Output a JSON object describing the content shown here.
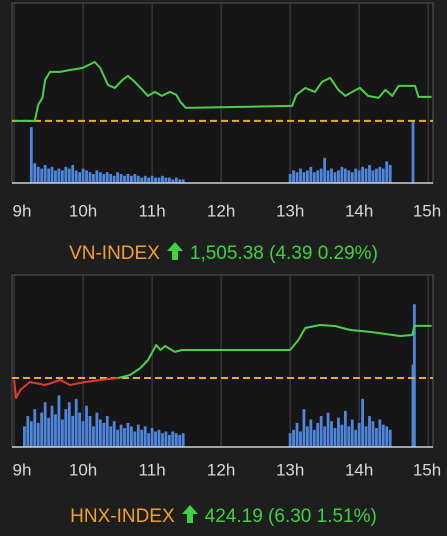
{
  "chart_data": [
    {
      "type": "line",
      "title": "VN-INDEX",
      "quote": "1,505.38 (4.39 0.29%)",
      "xlim": [
        8.97,
        15.07
      ],
      "ylim": [
        1489.6,
        1522.6
      ],
      "xticks": [
        {
          "value": 9,
          "label": "9h"
        },
        {
          "value": 10,
          "label": "10h"
        },
        {
          "value": 11,
          "label": "11h"
        },
        {
          "value": 12,
          "label": "12h"
        },
        {
          "value": 13,
          "label": "13h"
        },
        {
          "value": 14,
          "label": "14h"
        },
        {
          "value": 15,
          "label": "15h"
        }
      ],
      "grid": true,
      "reference": 1500.99,
      "colors": {
        "up": "#4ccf4c",
        "down": "#e2392c",
        "reference": "#e8b020",
        "volume": "#4f86dc"
      },
      "x": [
        9.0,
        9.3,
        9.35,
        9.41,
        9.45,
        9.52,
        9.67,
        9.81,
        9.99,
        10.17,
        10.25,
        10.36,
        10.46,
        10.57,
        10.65,
        10.75,
        10.86,
        10.94,
        11.04,
        11.14,
        11.26,
        11.35,
        11.41,
        11.49,
        13.03,
        13.09,
        13.22,
        13.36,
        13.46,
        13.58,
        13.7,
        13.8,
        13.9,
        14.01,
        14.13,
        14.28,
        14.38,
        14.48,
        14.57,
        14.81,
        14.86,
        15.05
      ],
      "values": [
        1500.99,
        1500.99,
        1503.92,
        1505.2,
        1508.49,
        1509.96,
        1509.96,
        1510.32,
        1510.69,
        1511.79,
        1510.69,
        1507.58,
        1507.03,
        1508.49,
        1509.23,
        1508.13,
        1506.66,
        1505.57,
        1506.3,
        1505.57,
        1506.3,
        1505.75,
        1504.47,
        1503.37,
        1503.74,
        1505.75,
        1507.03,
        1506.3,
        1508.13,
        1508.86,
        1506.66,
        1505.57,
        1506.3,
        1507.03,
        1505.57,
        1505.2,
        1506.66,
        1505.57,
        1507.4,
        1507.4,
        1505.38,
        1505.38
      ],
      "volume": {
        "ylim": [
          0,
          100
        ],
        "x": [
          9.25,
          9.3,
          9.35,
          9.4,
          9.45,
          9.5,
          9.55,
          9.6,
          9.65,
          9.7,
          9.75,
          9.8,
          9.85,
          9.9,
          9.95,
          10,
          10.05,
          10.1,
          10.15,
          10.2,
          10.25,
          10.3,
          10.35,
          10.4,
          10.45,
          10.5,
          10.55,
          10.6,
          10.65,
          10.7,
          10.75,
          10.8,
          10.85,
          10.9,
          10.95,
          11,
          11.05,
          11.1,
          11.15,
          11.2,
          11.25,
          11.3,
          11.35,
          11.4,
          11.45,
          13,
          13.05,
          13.1,
          13.15,
          13.2,
          13.25,
          13.3,
          13.35,
          13.4,
          13.45,
          13.5,
          13.55,
          13.6,
          13.65,
          13.7,
          13.75,
          13.8,
          13.85,
          13.9,
          13.95,
          14,
          14.05,
          14.1,
          14.15,
          14.2,
          14.25,
          14.3,
          14.35,
          14.4,
          14.45,
          14.78
        ],
        "values": [
          31,
          11,
          9,
          8,
          10,
          8,
          9,
          7,
          8,
          7,
          9,
          8,
          10,
          7,
          6,
          8,
          7,
          6,
          5,
          7,
          6,
          5,
          6,
          5,
          4,
          6,
          5,
          4,
          5,
          4,
          5,
          4,
          3,
          4,
          3,
          4,
          3,
          3,
          4,
          3,
          3,
          2,
          3,
          2,
          2,
          5,
          7,
          6,
          8,
          6,
          7,
          9,
          6,
          7,
          8,
          14,
          7,
          8,
          6,
          7,
          9,
          8,
          7,
          6,
          8,
          7,
          9,
          8,
          10,
          7,
          8,
          9,
          8,
          12,
          10,
          35
        ]
      }
    },
    {
      "type": "line",
      "title": "HNX-INDEX",
      "quote": "424.19 (6.30 1.51%)",
      "xlim": [
        8.97,
        15.07
      ],
      "ylim": [
        409.54,
        430.35
      ],
      "xticks": [
        {
          "value": 9,
          "label": "9h"
        },
        {
          "value": 10,
          "label": "10h"
        },
        {
          "value": 11,
          "label": "11h"
        },
        {
          "value": 12,
          "label": "12h"
        },
        {
          "value": 13,
          "label": "13h"
        },
        {
          "value": 14,
          "label": "14h"
        },
        {
          "value": 15,
          "label": "15h"
        }
      ],
      "grid": true,
      "reference": 417.89,
      "colors": {
        "up": "#4ccf4c",
        "down": "#e2392c",
        "reference": "#e8b020",
        "volume": "#4f86dc"
      },
      "x": [
        9.0,
        9.03,
        9.09,
        9.23,
        9.45,
        9.67,
        9.81,
        10.03,
        10.25,
        10.51,
        10.68,
        10.83,
        10.94,
        11.06,
        11.12,
        11.19,
        11.33,
        11.43,
        13.0,
        13.12,
        13.22,
        13.43,
        13.65,
        13.87,
        14.16,
        14.38,
        14.59,
        14.77,
        14.8,
        15.05
      ],
      "values": [
        417.65,
        415.47,
        416.44,
        417.41,
        417.04,
        417.65,
        417.04,
        417.41,
        417.65,
        417.89,
        418.25,
        419.1,
        420.07,
        421.88,
        421.28,
        421.76,
        421.04,
        421.28,
        421.28,
        422.49,
        423.94,
        424.3,
        424.18,
        423.7,
        423.46,
        423.21,
        422.97,
        423.09,
        424.19,
        424.19
      ],
      "volume": {
        "ylim": [
          0,
          100
        ],
        "x": [
          9.15,
          9.2,
          9.25,
          9.3,
          9.35,
          9.4,
          9.45,
          9.5,
          9.55,
          9.6,
          9.65,
          9.7,
          9.75,
          9.8,
          9.85,
          9.9,
          9.95,
          10,
          10.05,
          10.1,
          10.15,
          10.2,
          10.25,
          10.3,
          10.35,
          10.4,
          10.45,
          10.5,
          10.55,
          10.6,
          10.65,
          10.7,
          10.75,
          10.8,
          10.85,
          10.9,
          10.95,
          11,
          11.05,
          11.1,
          11.15,
          11.2,
          11.25,
          11.3,
          11.35,
          11.4,
          11.45,
          13,
          13.05,
          13.1,
          13.15,
          13.2,
          13.25,
          13.3,
          13.35,
          13.4,
          13.45,
          13.5,
          13.55,
          13.6,
          13.65,
          13.7,
          13.75,
          13.8,
          13.85,
          13.9,
          13.95,
          14,
          14.05,
          14.1,
          14.15,
          14.2,
          14.25,
          14.3,
          14.35,
          14.4,
          14.45,
          14.78,
          14.8
        ],
        "values": [
          12,
          18,
          15,
          22,
          14,
          20,
          26,
          17,
          24,
          19,
          30,
          16,
          22,
          26,
          18,
          28,
          20,
          15,
          24,
          18,
          12,
          20,
          16,
          14,
          18,
          12,
          15,
          10,
          13,
          11,
          14,
          12,
          9,
          13,
          10,
          12,
          8,
          11,
          9,
          10,
          8,
          9,
          7,
          9,
          8,
          7,
          8,
          8,
          10,
          14,
          9,
          22,
          12,
          16,
          10,
          14,
          18,
          12,
          20,
          15,
          11,
          17,
          13,
          21,
          12,
          16,
          10,
          14,
          28,
          12,
          18,
          15,
          11,
          16,
          13,
          12,
          10,
          48,
          83
        ]
      }
    }
  ]
}
